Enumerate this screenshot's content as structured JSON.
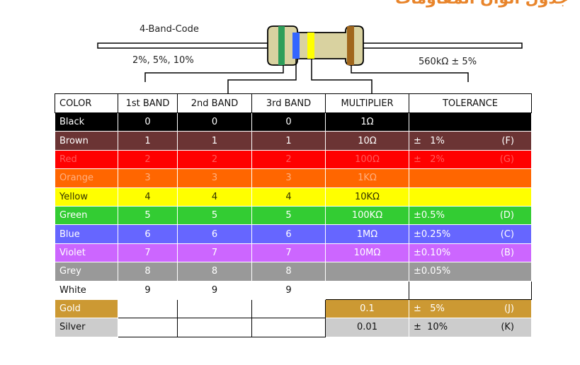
{
  "page_title": "جدول الوان المقاومات",
  "diagram": {
    "band_code_label": "4-Band-Code",
    "tolerance_examples": "2%, 5%, 10%",
    "example_value": "560kΩ ± 5%"
  },
  "table": {
    "headers": [
      "COLOR",
      "1st BAND",
      "2nd BAND",
      "3rd BAND",
      "MULTIPLIER",
      "TOLERANCE"
    ],
    "rows": [
      {
        "color": "Black",
        "b1": "0",
        "b2": "0",
        "b3": "0",
        "mult": "1Ω",
        "tol": "",
        "code": "",
        "bg": "#000000",
        "fg": "#ffffff",
        "tol_bg": "#000000"
      },
      {
        "color": "Brown",
        "b1": "1",
        "b2": "1",
        "b3": "1",
        "mult": "10Ω",
        "tol": "±   1%",
        "code": "(F)",
        "bg": "#6b3434",
        "fg": "#ffffff",
        "tol_bg": "#6b3434"
      },
      {
        "color": "Red",
        "b1": "2",
        "b2": "2",
        "b3": "2",
        "mult": "100Ω",
        "tol": "±   2%",
        "code": "(G)",
        "bg": "#ff0000",
        "fg": "#ff5a5a",
        "tol_bg": "#ff0000"
      },
      {
        "color": "Orange",
        "b1": "3",
        "b2": "3",
        "b3": "3",
        "mult": "1KΩ",
        "tol": "",
        "code": "",
        "bg": "#ff6600",
        "fg": "#ffb080",
        "tol_bg": "#ff6600"
      },
      {
        "color": "Yellow",
        "b1": "4",
        "b2": "4",
        "b3": "4",
        "mult": "10KΩ",
        "tol": "",
        "code": "",
        "bg": "#ffff00",
        "fg": "#333300",
        "tol_bg": "#ffff00"
      },
      {
        "color": "Green",
        "b1": "5",
        "b2": "5",
        "b3": "5",
        "mult": "100KΩ",
        "tol": "±0.5%",
        "code": "(D)",
        "bg": "#33cc33",
        "fg": "#ffffff",
        "tol_bg": "#33cc33"
      },
      {
        "color": "Blue",
        "b1": "6",
        "b2": "6",
        "b3": "6",
        "mult": "1MΩ",
        "tol": "±0.25%",
        "code": "(C)",
        "bg": "#6666ff",
        "fg": "#ffffff",
        "tol_bg": "#6666ff"
      },
      {
        "color": "Violet",
        "b1": "7",
        "b2": "7",
        "b3": "7",
        "mult": "10MΩ",
        "tol": "±0.10%",
        "code": "(B)",
        "bg": "#cc66ff",
        "fg": "#ffffff",
        "tol_bg": "#cc66ff"
      },
      {
        "color": "Grey",
        "b1": "8",
        "b2": "8",
        "b3": "8",
        "mult": "",
        "tol": "±0.05%",
        "code": "",
        "bg": "#999999",
        "fg": "#ffffff",
        "tol_bg": "#999999"
      },
      {
        "color": "White",
        "b1": "9",
        "b2": "9",
        "b3": "9",
        "mult": "",
        "tol": "",
        "code": "",
        "bg": "#ffffff",
        "fg": "#111111",
        "tol_bg": "#ffffff"
      },
      {
        "color": "Gold",
        "b1": "",
        "b2": "",
        "b3": "",
        "mult": "0.1",
        "tol": "±   5%",
        "code": "(J)",
        "bg": "#cc9933",
        "fg": "#ffffff",
        "tol_bg": "#cc9933"
      },
      {
        "color": "Silver",
        "b1": "",
        "b2": "",
        "b3": "",
        "mult": "0.01",
        "tol": "±  10%",
        "code": "(K)",
        "bg": "#cccccc",
        "fg": "#111111",
        "tol_bg": "#cccccc"
      }
    ]
  },
  "resistor_colors": {
    "body": "#d9d2a0",
    "band1": "#2e9e5a",
    "band2": "#3366ff",
    "band3": "#ffff00",
    "band4": "#a0661c"
  }
}
